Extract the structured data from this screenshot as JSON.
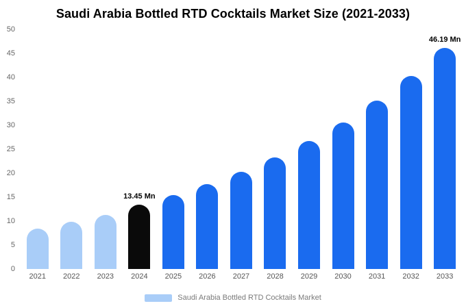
{
  "chart_data": {
    "type": "bar",
    "title": "Saudi Arabia Bottled RTD Cocktails Market Size (2021-2033)",
    "unit": "Mn",
    "categories": [
      "2021",
      "2022",
      "2023",
      "2024",
      "2025",
      "2026",
      "2027",
      "2028",
      "2029",
      "2030",
      "2031",
      "2032",
      "2033"
    ],
    "values": [
      8.5,
      9.8,
      11.3,
      13.45,
      15.43,
      17.7,
      20.3,
      23.29,
      26.71,
      30.64,
      35.14,
      40.31,
      46.19
    ],
    "bar_color_roles": [
      "historical",
      "historical",
      "historical",
      "highlight",
      "forecast",
      "forecast",
      "forecast",
      "forecast",
      "forecast",
      "forecast",
      "forecast",
      "forecast",
      "forecast"
    ],
    "annotations": [
      {
        "category": "2024",
        "text": "13.45 Mn"
      },
      {
        "category": "2033",
        "text": "46.19 Mn"
      }
    ],
    "xlabel": "",
    "ylabel": "",
    "ylim": [
      0,
      50
    ],
    "yticks": [
      0,
      5,
      10,
      15,
      20,
      25,
      30,
      35,
      40,
      45,
      50
    ],
    "grid": false,
    "legend": {
      "label": "Saudi Arabia Bottled RTD Cocktails Market",
      "position": "bottom"
    }
  },
  "colors": {
    "historical": "#a9cdf8",
    "highlight": "#0a0a0a",
    "forecast": "#1a6bef",
    "axis_text": "#666666",
    "legend_text": "#7a7a7a"
  }
}
